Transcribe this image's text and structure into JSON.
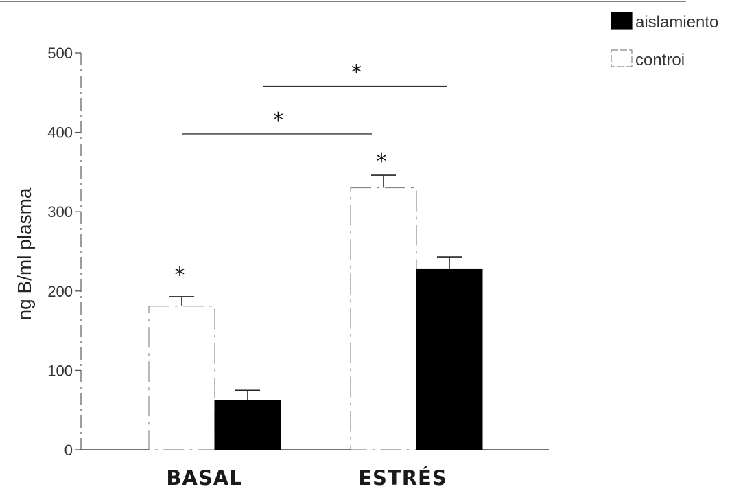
{
  "chart_data": {
    "type": "bar",
    "categories": [
      "BASAL",
      "ESTRÉS"
    ],
    "series": [
      {
        "name": "controi",
        "color": "#ffffff",
        "values": [
          181,
          330
        ],
        "errors": [
          12,
          16
        ]
      },
      {
        "name": "aislamiento",
        "color": "#000000",
        "values": [
          62,
          228
        ],
        "errors": [
          13,
          15
        ]
      }
    ],
    "ylabel": "ng B/ml plasma",
    "xlabel": "",
    "ylim": [
      0,
      500
    ],
    "yticks": [
      "0",
      "100",
      "200",
      "300",
      "400",
      "500"
    ],
    "grid": false,
    "legend_position": "top-right",
    "legend": [
      {
        "label": "aislamiento",
        "color": "#000000"
      },
      {
        "label": "controi",
        "color": "#ffffff"
      }
    ],
    "significance_marker": "*",
    "significance_brackets": [
      {
        "from": "BASAL controi",
        "to": "ESTRÉS controi",
        "value": 398,
        "label": "*"
      },
      {
        "from": "BASAL aislamiento",
        "to": "ESTRÉS aislamiento",
        "value": 458,
        "label": "*"
      }
    ],
    "bar_stars": [
      {
        "category": "BASAL",
        "series": "controi",
        "value": 229,
        "label": "*"
      },
      {
        "category": "ESTRÉS",
        "series": "controi",
        "value": 372,
        "label": "*"
      }
    ]
  }
}
